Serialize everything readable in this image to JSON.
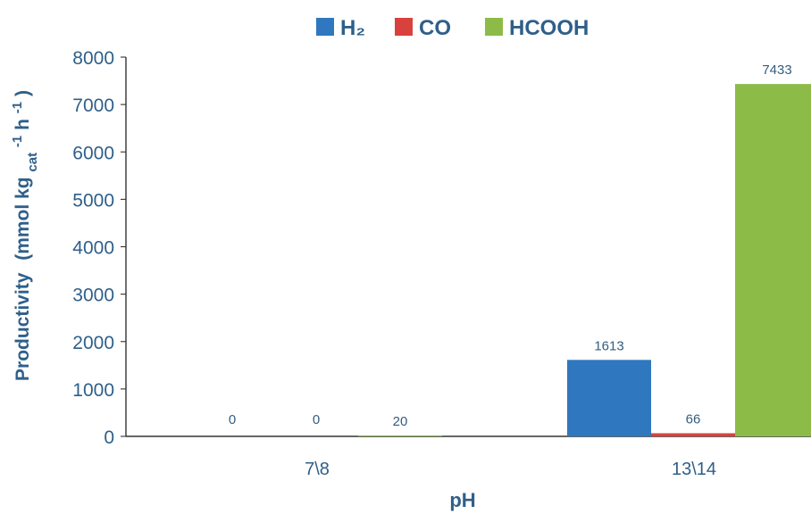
{
  "chart_data": {
    "type": "bar",
    "categories": [
      "7\\8",
      "13\\14"
    ],
    "series": [
      {
        "name": "H₂",
        "values": [
          0,
          1613
        ],
        "color": "#2f78bf"
      },
      {
        "name": "CO",
        "values": [
          0,
          66
        ],
        "color": "#d9423c"
      },
      {
        "name": "HCOOH",
        "values": [
          20,
          7433
        ],
        "color": "#8dbb47"
      }
    ],
    "data_labels": [
      [
        "0",
        "1613"
      ],
      [
        "0",
        "66"
      ],
      [
        "20",
        "7433"
      ]
    ],
    "xlabel": "pH",
    "ylabel": {
      "main": "Productivity",
      "unit_prefix": "(mmol kg",
      "unit_sub": "cat",
      "unit_sup1": "-1",
      "unit_mid": "h",
      "unit_sup2": "-1",
      "unit_close": ")"
    },
    "ylim": [
      0,
      8000
    ],
    "yticks": [
      0,
      1000,
      2000,
      3000,
      4000,
      5000,
      6000,
      7000,
      8000
    ],
    "grid": false,
    "legend_position": "top-center"
  }
}
